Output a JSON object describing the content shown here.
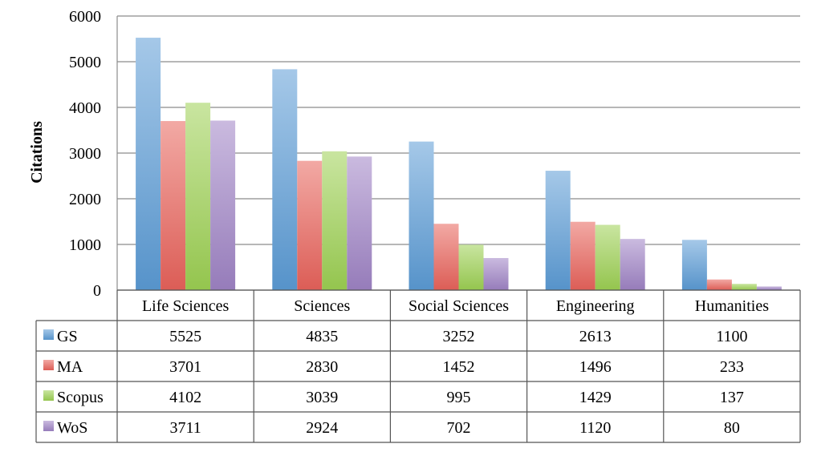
{
  "chart_data": {
    "type": "bar",
    "ylabel": "Citations",
    "xlabel": "",
    "title": "",
    "ylim": [
      0,
      6000
    ],
    "yticks": [
      0,
      1000,
      2000,
      3000,
      4000,
      5000,
      6000
    ],
    "grid": true,
    "legend": "data-table-left",
    "categories": [
      "Life Sciences",
      "Sciences",
      "Social Sciences",
      "Engineering",
      "Humanities"
    ],
    "series": [
      {
        "name": "GS",
        "color": "#5b9bd5",
        "values": [
          5525,
          4835,
          3252,
          2613,
          1100
        ]
      },
      {
        "name": "MA",
        "color": "#e8625a",
        "values": [
          3701,
          2830,
          1452,
          1496,
          233
        ]
      },
      {
        "name": "Scopus",
        "color": "#9ccf52",
        "values": [
          4102,
          3039,
          995,
          1429,
          137
        ]
      },
      {
        "name": "WoS",
        "color": "#9e82c4",
        "values": [
          3711,
          2924,
          702,
          1120,
          80
        ]
      }
    ]
  }
}
